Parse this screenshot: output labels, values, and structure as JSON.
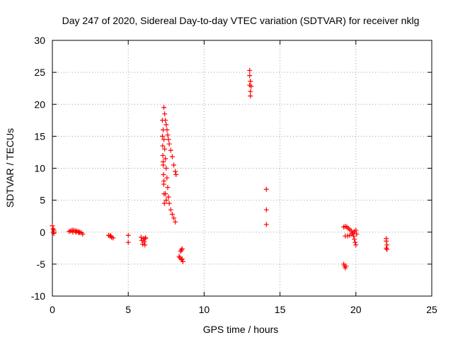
{
  "chart_data": {
    "type": "scatter",
    "title": "Day 247 of 2020, Sidereal Day-to-day VTEC variation (SDTVAR) for receiver nklg",
    "xlabel": "GPS time / hours",
    "ylabel": "SDTVAR / TECUs",
    "xlim": [
      0,
      25
    ],
    "ylim": [
      -10,
      30
    ],
    "xticks": [
      0,
      5,
      10,
      15,
      20,
      25
    ],
    "yticks": [
      -10,
      -5,
      0,
      5,
      10,
      15,
      20,
      25,
      30
    ],
    "xtick_labels": [
      "0",
      "5",
      "10",
      "15",
      "20",
      "25"
    ],
    "ytick_labels": [
      "-10",
      "-5",
      "0",
      "5",
      "10",
      "15",
      "20",
      "25",
      "30"
    ],
    "grid": true,
    "marker": "+",
    "color": "#ff0000",
    "series": [
      {
        "name": "SDTVAR",
        "points": [
          [
            0.0,
            1.0
          ],
          [
            0.05,
            0.5
          ],
          [
            0.05,
            0.0
          ],
          [
            0.1,
            -0.2
          ],
          [
            0.1,
            0.3
          ],
          [
            1.1,
            0.1
          ],
          [
            1.2,
            0.2
          ],
          [
            1.3,
            0.3
          ],
          [
            1.4,
            0.3
          ],
          [
            1.5,
            0.2
          ],
          [
            1.6,
            0.2
          ],
          [
            1.7,
            0.1
          ],
          [
            1.8,
            0.0
          ],
          [
            1.9,
            -0.1
          ],
          [
            2.0,
            -0.3
          ],
          [
            1.35,
            0.0
          ],
          [
            1.55,
            0.0
          ],
          [
            1.75,
            -0.1
          ],
          [
            3.7,
            -0.5
          ],
          [
            3.8,
            -0.6
          ],
          [
            3.9,
            -0.8
          ],
          [
            4.0,
            -0.9
          ],
          [
            3.85,
            -0.6
          ],
          [
            5.0,
            -0.5
          ],
          [
            5.0,
            -1.6
          ],
          [
            5.85,
            -0.8
          ],
          [
            5.9,
            -1.3
          ],
          [
            5.95,
            -1.9
          ],
          [
            6.0,
            -1.0
          ],
          [
            6.05,
            -1.5
          ],
          [
            6.1,
            -1.0
          ],
          [
            6.1,
            -2.0
          ],
          [
            6.15,
            -0.9
          ],
          [
            7.25,
            15.0
          ],
          [
            7.27,
            13.5
          ],
          [
            7.28,
            12.0
          ],
          [
            7.3,
            10.5
          ],
          [
            7.32,
            9.0
          ],
          [
            7.34,
            7.5
          ],
          [
            7.36,
            6.0
          ],
          [
            7.38,
            4.5
          ],
          [
            7.25,
            17.5
          ],
          [
            7.3,
            16.0
          ],
          [
            7.35,
            14.5
          ],
          [
            7.4,
            13.0
          ],
          [
            7.45,
            11.5
          ],
          [
            7.5,
            10.0
          ],
          [
            7.55,
            8.5
          ],
          [
            7.6,
            7.0
          ],
          [
            7.65,
            5.5
          ],
          [
            7.7,
            4.5
          ],
          [
            7.8,
            3.5
          ],
          [
            7.9,
            2.8
          ],
          [
            8.0,
            2.2
          ],
          [
            8.1,
            1.6
          ],
          [
            7.35,
            19.5
          ],
          [
            7.4,
            18.5
          ],
          [
            7.45,
            17.5
          ],
          [
            7.5,
            16.8
          ],
          [
            7.55,
            16.0
          ],
          [
            7.6,
            15.2
          ],
          [
            7.65,
            14.5
          ],
          [
            7.7,
            13.8
          ],
          [
            7.8,
            12.8
          ],
          [
            7.9,
            11.8
          ],
          [
            8.0,
            10.5
          ],
          [
            8.1,
            9.5
          ],
          [
            8.15,
            9.0
          ],
          [
            7.3,
            11.0
          ],
          [
            7.35,
            8.0
          ],
          [
            7.45,
            6.0
          ],
          [
            7.5,
            5.0
          ],
          [
            8.5,
            -2.8
          ],
          [
            8.45,
            -3.0
          ],
          [
            8.55,
            -2.6
          ],
          [
            8.4,
            -4.0
          ],
          [
            8.5,
            -4.3
          ],
          [
            8.6,
            -4.6
          ],
          [
            8.35,
            -3.8
          ],
          [
            8.55,
            -4.2
          ],
          [
            13.0,
            25.3
          ],
          [
            13.0,
            24.5
          ],
          [
            13.05,
            23.6
          ],
          [
            13.0,
            23.0
          ],
          [
            13.1,
            22.8
          ],
          [
            13.05,
            22.0
          ],
          [
            13.05,
            21.3
          ],
          [
            14.1,
            6.7
          ],
          [
            14.1,
            3.5
          ],
          [
            14.1,
            1.2
          ],
          [
            19.2,
            -5.0
          ],
          [
            19.25,
            -5.3
          ],
          [
            19.3,
            -5.6
          ],
          [
            19.35,
            -5.3
          ],
          [
            19.2,
            0.8
          ],
          [
            19.3,
            0.9
          ],
          [
            19.4,
            0.8
          ],
          [
            19.5,
            0.6
          ],
          [
            19.6,
            0.4
          ],
          [
            19.7,
            0.2
          ],
          [
            19.8,
            -0.1
          ],
          [
            19.85,
            -0.6
          ],
          [
            19.9,
            -1.1
          ],
          [
            19.95,
            -1.6
          ],
          [
            20.0,
            -2.0
          ],
          [
            19.9,
            0.1
          ],
          [
            20.0,
            0.3
          ],
          [
            20.05,
            -0.3
          ],
          [
            19.3,
            -0.6
          ],
          [
            19.45,
            -0.6
          ],
          [
            19.6,
            -0.5
          ],
          [
            19.75,
            -0.3
          ],
          [
            22.0,
            -1.0
          ],
          [
            22.0,
            -1.4
          ],
          [
            22.05,
            -2.0
          ],
          [
            22.0,
            -2.5
          ],
          [
            22.05,
            -2.7
          ]
        ]
      }
    ]
  }
}
